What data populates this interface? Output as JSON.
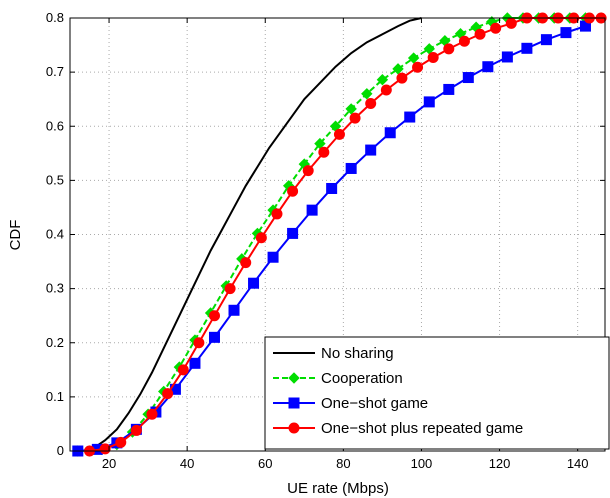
{
  "chart_data": {
    "type": "line",
    "title": "",
    "xlabel": "UE rate (Mbps)",
    "ylabel": "CDF",
    "xlim": [
      10,
      147
    ],
    "ylim": [
      0,
      0.8
    ],
    "xticks": [
      20,
      40,
      60,
      80,
      100,
      120,
      140
    ],
    "yticks": [
      0,
      0.1,
      0.2,
      0.3,
      0.4,
      0.5,
      0.6,
      0.7,
      0.8
    ],
    "xtick_labels": [
      "20",
      "40",
      "60",
      "80",
      "100",
      "120",
      "140"
    ],
    "ytick_labels": [
      "0",
      "0.1",
      "0.2",
      "0.3",
      "0.4",
      "0.5",
      "0.6",
      "0.7",
      "0.8"
    ],
    "grid": true,
    "legend_position": "bottom-right",
    "series": [
      {
        "name": "No sharing",
        "color": "#000000",
        "marker": "none",
        "x": [
          13,
          16,
          19,
          22,
          25,
          28,
          31,
          34,
          37,
          40,
          43,
          46,
          49,
          52,
          55,
          58,
          61,
          64,
          67,
          70,
          74,
          78,
          82,
          86,
          90,
          94,
          97,
          100
        ],
        "y": [
          0,
          0.005,
          0.02,
          0.04,
          0.07,
          0.105,
          0.145,
          0.19,
          0.235,
          0.28,
          0.325,
          0.37,
          0.41,
          0.45,
          0.49,
          0.525,
          0.56,
          0.59,
          0.62,
          0.65,
          0.68,
          0.71,
          0.735,
          0.755,
          0.77,
          0.785,
          0.795,
          0.8
        ]
      },
      {
        "name": "Cooperation",
        "color": "#00dd00",
        "marker": "diamond",
        "x": [
          12,
          15,
          18,
          22,
          26,
          30,
          34,
          38,
          42,
          46,
          50,
          54,
          58,
          62,
          66,
          70,
          74,
          78,
          82,
          86,
          90,
          94,
          98,
          102,
          106,
          110,
          114,
          118,
          122,
          126,
          130,
          134,
          138,
          142,
          146
        ],
        "y": [
          0,
          0,
          0.003,
          0.012,
          0.035,
          0.068,
          0.11,
          0.155,
          0.205,
          0.255,
          0.305,
          0.355,
          0.402,
          0.445,
          0.49,
          0.53,
          0.568,
          0.6,
          0.632,
          0.66,
          0.686,
          0.706,
          0.726,
          0.743,
          0.758,
          0.771,
          0.783,
          0.793,
          0.8,
          0.8,
          0.8,
          0.8,
          0.8,
          0.8,
          0.8
        ]
      },
      {
        "name": "One−shot game",
        "color": "#0000ff",
        "marker": "square",
        "x": [
          12,
          17,
          22,
          27,
          32,
          37,
          42,
          47,
          52,
          57,
          62,
          67,
          72,
          77,
          82,
          87,
          92,
          97,
          102,
          107,
          112,
          117,
          122,
          127,
          132,
          137,
          142
        ],
        "y": [
          0,
          0.003,
          0.015,
          0.04,
          0.072,
          0.114,
          0.162,
          0.21,
          0.26,
          0.31,
          0.358,
          0.402,
          0.445,
          0.485,
          0.522,
          0.556,
          0.588,
          0.617,
          0.645,
          0.668,
          0.69,
          0.71,
          0.728,
          0.744,
          0.76,
          0.773,
          0.785
        ]
      },
      {
        "name": "One−shot plus repeated game",
        "color": "#ff0000",
        "marker": "circle",
        "x": [
          15,
          19,
          23,
          27,
          31,
          35,
          39,
          43,
          47,
          51,
          55,
          59,
          63,
          67,
          71,
          75,
          79,
          83,
          87,
          91,
          95,
          99,
          103,
          107,
          111,
          115,
          119,
          123,
          127,
          131,
          135,
          139,
          143,
          146
        ],
        "y": [
          0,
          0.004,
          0.016,
          0.038,
          0.068,
          0.106,
          0.15,
          0.2,
          0.25,
          0.3,
          0.348,
          0.394,
          0.438,
          0.48,
          0.518,
          0.552,
          0.585,
          0.615,
          0.642,
          0.667,
          0.689,
          0.709,
          0.727,
          0.743,
          0.757,
          0.77,
          0.781,
          0.79,
          0.8,
          0.8,
          0.8,
          0.8,
          0.8,
          0.8
        ]
      }
    ]
  }
}
